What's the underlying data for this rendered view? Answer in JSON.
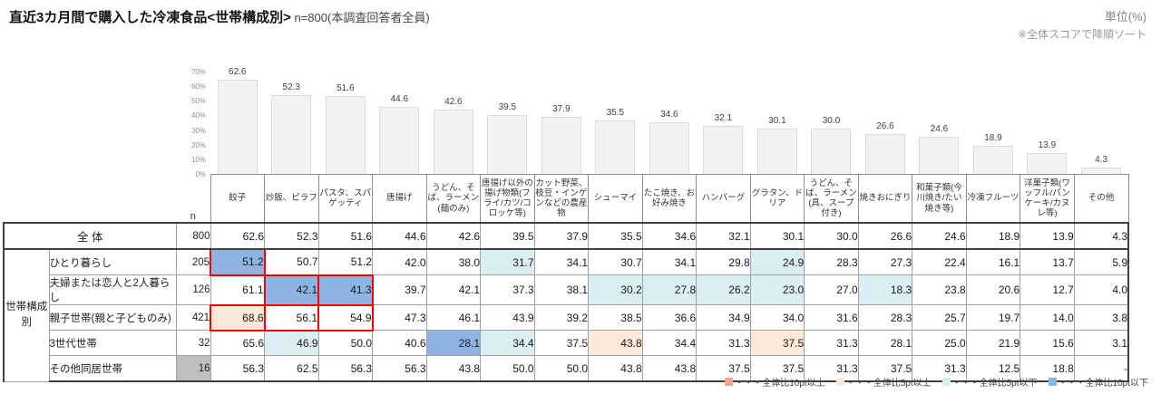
{
  "header": {
    "title_main": "直近3カ月間で購入した冷凍食品<世帯構成別>",
    "title_sub": " n=800(本調査回答者全員)",
    "unit_label": "単位(%)",
    "sort_note": "※全体スコアで降順ソート"
  },
  "chart_data": {
    "type": "bar",
    "title": "直近3カ月間で購入した冷凍食品<世帯構成別>",
    "categories": [
      "餃子",
      "炒飯、ピラフ",
      "パスタ、スパゲッティ",
      "唐揚げ",
      "うどん、そば、ラーメン(麺のみ)",
      "唐揚げ以外の揚げ物類(フライ/カツ/コロッケ等)",
      "カット野菜、枝豆・インゲンなどの農産物",
      "シューマイ",
      "たこ焼き、お好み焼き",
      "ハンバーグ",
      "グラタン、ドリア",
      "うどん、そば、ラーメン(具、スープ付き)",
      "焼きおにぎり",
      "和菓子類(今川焼き/たい焼き等)",
      "冷凍フルーツ",
      "洋菓子類(ワッフル/パンケーキ/カヌレ等)",
      "その他"
    ],
    "values": [
      62.6,
      52.3,
      51.6,
      44.6,
      42.6,
      39.5,
      37.9,
      35.5,
      34.6,
      32.1,
      30.1,
      30.0,
      26.6,
      24.6,
      18.9,
      13.9,
      4.3
    ],
    "yticks": [
      "70%",
      "60%",
      "50%",
      "40%",
      "30%",
      "20%",
      "10%",
      "0%"
    ],
    "ylim": [
      0,
      70
    ],
    "grid": false,
    "bar_color": "#f2f2f2"
  },
  "table": {
    "n_label": "n",
    "group_label": "世帯構成別",
    "overall": {
      "label": "全 体",
      "n": "800",
      "values": [
        "62.6",
        "52.3",
        "51.6",
        "44.6",
        "42.6",
        "39.5",
        "37.9",
        "35.5",
        "34.6",
        "32.1",
        "30.1",
        "30.0",
        "26.6",
        "24.6",
        "18.9",
        "13.9",
        "4.3"
      ]
    },
    "rows": [
      {
        "label": "ひとり暮らし",
        "n": "205",
        "n_gray": false,
        "values": [
          "51.2",
          "50.7",
          "51.2",
          "42.0",
          "38.0",
          "31.7",
          "34.1",
          "30.7",
          "34.1",
          "29.8",
          "24.9",
          "28.3",
          "27.3",
          "22.4",
          "16.1",
          "13.7",
          "5.9"
        ],
        "bg": [
          "dn2",
          "",
          "",
          "",
          "",
          "dn1",
          "",
          "",
          "",
          "",
          "dn1",
          "",
          "",
          "",
          "",
          "",
          ""
        ],
        "red": [
          0
        ]
      },
      {
        "label": "夫婦または恋人と2人暮らし",
        "n": "126",
        "n_gray": false,
        "values": [
          "61.1",
          "42.1",
          "41.3",
          "39.7",
          "42.1",
          "37.3",
          "38.1",
          "30.2",
          "27.8",
          "26.2",
          "23.0",
          "27.0",
          "18.3",
          "23.8",
          "20.6",
          "12.7",
          "4.0"
        ],
        "bg": [
          "",
          "dn2",
          "dn2",
          "",
          "",
          "",
          "",
          "dn1",
          "dn1",
          "dn1",
          "dn1",
          "",
          "dn1",
          "",
          "",
          "",
          ""
        ],
        "red": [
          1,
          2
        ]
      },
      {
        "label": "親子世帯(親と子どものみ)",
        "n": "421",
        "n_gray": false,
        "values": [
          "68.6",
          "56.1",
          "54.9",
          "47.3",
          "46.1",
          "43.9",
          "39.2",
          "38.5",
          "36.6",
          "34.9",
          "34.0",
          "31.6",
          "28.3",
          "25.7",
          "19.7",
          "14.0",
          "3.8"
        ],
        "bg": [
          "up1",
          "",
          "",
          "",
          "",
          "",
          "",
          "",
          "",
          "",
          "",
          "",
          "",
          "",
          "",
          "",
          ""
        ],
        "red": [
          0,
          1,
          2
        ]
      },
      {
        "label": "3世代世帯",
        "n": "32",
        "n_gray": false,
        "values": [
          "65.6",
          "46.9",
          "50.0",
          "40.6",
          "28.1",
          "34.4",
          "37.5",
          "43.8",
          "34.4",
          "31.3",
          "37.5",
          "31.3",
          "28.1",
          "25.0",
          "21.9",
          "15.6",
          "3.1"
        ],
        "bg": [
          "",
          "dn1",
          "",
          "",
          "dn2",
          "dn1",
          "",
          "up1",
          "",
          "",
          "up1",
          "",
          "",
          "",
          "",
          "",
          ""
        ],
        "red": []
      },
      {
        "label": "その他同居世帯",
        "n": "16",
        "n_gray": true,
        "values": [
          "56.3",
          "62.5",
          "56.3",
          "56.3",
          "43.8",
          "50.0",
          "50.0",
          "43.8",
          "43.8",
          "37.5",
          "37.5",
          "31.3",
          "37.5",
          "31.3",
          "12.5",
          "18.8",
          "-"
        ],
        "bg": [
          "",
          "",
          "",
          "",
          "",
          "",
          "",
          "",
          "",
          "",
          "",
          "",
          "",
          "",
          "",
          "",
          ""
        ],
        "red": []
      }
    ]
  },
  "legend": {
    "items": [
      {
        "color": "#F2A58C",
        "label": "・・・全体比10pt以上"
      },
      {
        "color": "#FDE9D9",
        "label": "・・・全体比5pt以上"
      },
      {
        "color": "#DAEEF3",
        "label": "・・・全体比5pt以下"
      },
      {
        "color": "#8DB4E2",
        "label": "・・・全体比10pt以下"
      }
    ]
  }
}
